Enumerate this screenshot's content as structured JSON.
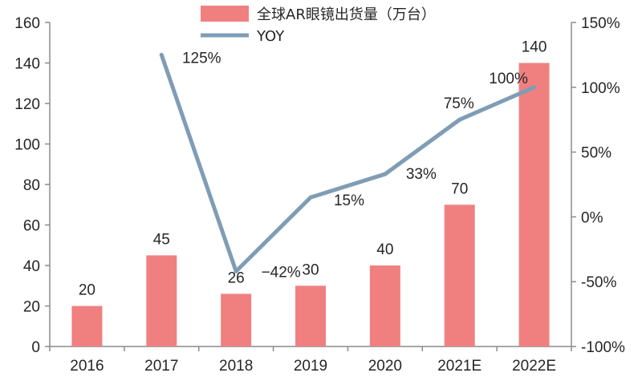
{
  "chart_data": {
    "type": "bar",
    "categories": [
      "2016",
      "2017",
      "2018",
      "2019",
      "2020",
      "2021E",
      "2022E"
    ],
    "series": [
      {
        "name": "全球AR眼镜出货量（万台）",
        "type": "bar",
        "axis": "left",
        "values": [
          20,
          45,
          26,
          30,
          40,
          70,
          140
        ],
        "labels": [
          "20",
          "45",
          "26",
          "30",
          "40",
          "70",
          "140"
        ],
        "color": "#f08080"
      },
      {
        "name": "YOY",
        "type": "line",
        "axis": "right",
        "values": [
          null,
          125,
          -42,
          15,
          33,
          75,
          100
        ],
        "labels": [
          "",
          "125%",
          "-42%",
          "15%",
          "33%",
          "75%",
          "100%"
        ],
        "color": "#7f9db5"
      }
    ],
    "y_left": {
      "min": 0,
      "max": 160,
      "ticks": [
        "0",
        "20",
        "40",
        "60",
        "80",
        "100",
        "120",
        "140",
        "160"
      ]
    },
    "y_right": {
      "min": -100,
      "max": 150,
      "ticks": [
        "-100%",
        "-50%",
        "0%",
        "50%",
        "100%",
        "150%"
      ]
    },
    "legend_position": "top",
    "grid": false
  }
}
